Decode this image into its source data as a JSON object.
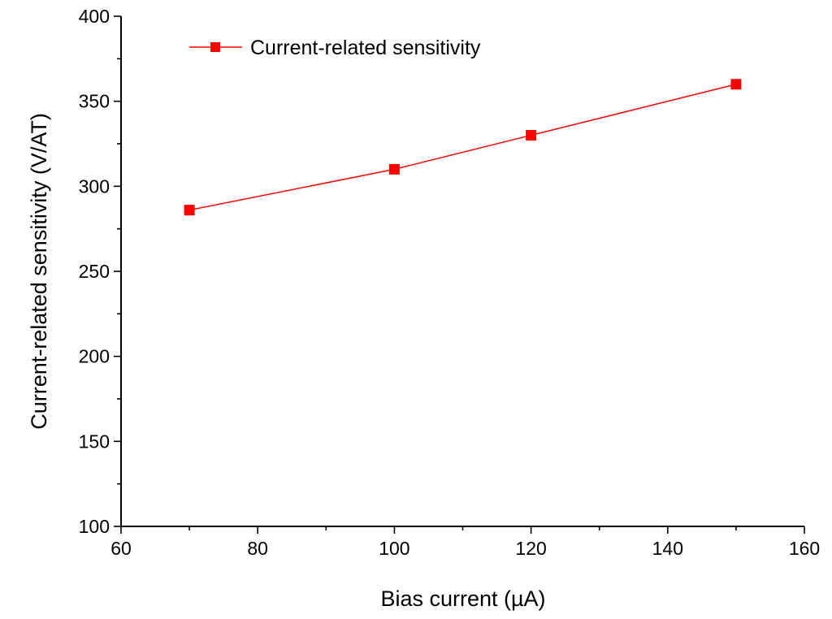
{
  "chart_data": {
    "type": "line",
    "title": "",
    "xlabel": "Bias current (µA)",
    "ylabel": "Current-related sensitivity (V/AT)",
    "xlim": [
      60,
      160
    ],
    "ylim": [
      100,
      400
    ],
    "x_ticks": [
      60,
      80,
      100,
      120,
      140,
      160
    ],
    "y_ticks": [
      100,
      150,
      200,
      250,
      300,
      350,
      400
    ],
    "grid": false,
    "legend_position": "top-left",
    "series": [
      {
        "name": "Current-related sensitivity",
        "color": "#ff0000",
        "marker": "square",
        "x": [
          70,
          100,
          120,
          150
        ],
        "y": [
          286,
          310,
          330,
          360
        ]
      }
    ]
  }
}
